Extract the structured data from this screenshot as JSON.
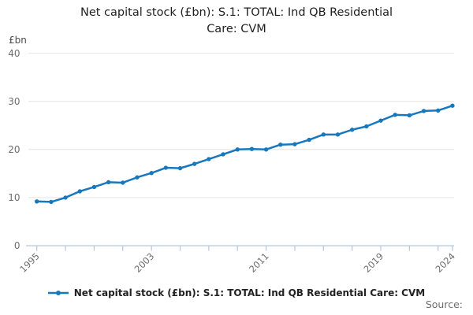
{
  "title": {
    "text": "Net capital stock (£bn): S.1: TOTAL: Ind QB Residential Care: CVM",
    "lines": [
      "Net capital stock (£bn): S.1: TOTAL: Ind QB Residential",
      "Care: CVM"
    ]
  },
  "y_axis": {
    "unit_label": "£bn",
    "tick_labels": [
      "0",
      "10",
      "20",
      "30",
      "40"
    ]
  },
  "x_axis": {
    "labeled_ticks": [
      "1995",
      "2003",
      "2011",
      "2019",
      "2024"
    ]
  },
  "legend": {
    "label": "Net capital stock (£bn): S.1: TOTAL: Ind QB Residential Care: CVM",
    "marker": "line-with-dot-icon"
  },
  "footer": {
    "source_label": "Source:"
  },
  "colors": {
    "line": "#1778be",
    "grid": "#e4e4e4",
    "axis": "#b7c6d9",
    "tick_label": "#6e6e6e",
    "title": "#1f1f1f",
    "legend_text": "#222222",
    "source_text": "#6e6e6e"
  },
  "chart_data": {
    "type": "line",
    "title": "Net capital stock (£bn): S.1: TOTAL: Ind QB Residential Care: CVM",
    "xlabel": "",
    "ylabel": "£bn",
    "x": [
      1995,
      1996,
      1997,
      1998,
      1999,
      2000,
      2001,
      2002,
      2003,
      2004,
      2005,
      2006,
      2007,
      2008,
      2009,
      2010,
      2011,
      2012,
      2013,
      2014,
      2015,
      2016,
      2017,
      2018,
      2019,
      2020,
      2021,
      2022,
      2023,
      2024
    ],
    "series": [
      {
        "name": "Net capital stock (£bn): S.1: TOTAL: Ind QB Residential Care: CVM",
        "values": [
          9.2,
          9.1,
          10.0,
          11.3,
          12.2,
          13.2,
          13.1,
          14.2,
          15.1,
          16.2,
          16.1,
          17.0,
          18.0,
          19.0,
          20.0,
          20.1,
          20.0,
          21.0,
          21.1,
          22.0,
          23.1,
          23.1,
          24.1,
          24.8,
          26.0,
          27.2,
          27.1,
          28.0,
          28.1,
          29.1
        ]
      }
    ],
    "ylim": [
      0,
      40
    ],
    "xlim": [
      1995,
      2024
    ],
    "y_ticks": [
      0,
      10,
      20,
      30,
      40
    ],
    "x_tick_years": [
      1995,
      1997,
      1999,
      2001,
      2003,
      2005,
      2007,
      2009,
      2011,
      2013,
      2015,
      2017,
      2019,
      2021,
      2023,
      2024
    ],
    "x_labeled_years": [
      1995,
      2003,
      2011,
      2019,
      2024
    ],
    "grid": "horizontal",
    "legend_position": "bottom",
    "marker": "circle"
  }
}
